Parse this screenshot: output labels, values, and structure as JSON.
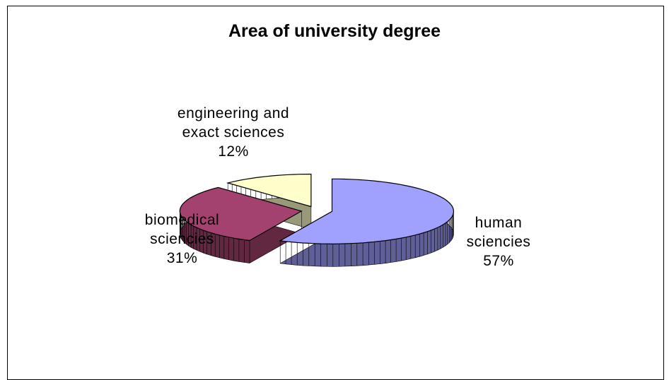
{
  "chart_data": {
    "type": "pie",
    "title": "Area of university degree",
    "categories": [
      "human sciencies",
      "biomedical sciencies",
      "engineering and exact sciences"
    ],
    "values": [
      57,
      31,
      12
    ],
    "value_labels": [
      "57%",
      "31%",
      "12%"
    ],
    "colors": [
      "#a0a0ff",
      "#a3426e",
      "#ffffcc"
    ],
    "three_d": true,
    "exploded": true
  }
}
